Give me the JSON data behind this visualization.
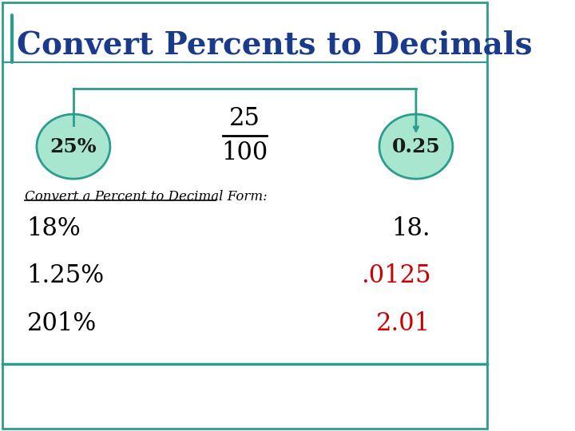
{
  "title": "Convert Percents to Decimals",
  "title_color": "#1a3a8c",
  "title_fontsize": 28,
  "background_color": "#ffffff",
  "border_color": "#2a9d8f",
  "left_bubble_text": "25%",
  "right_bubble_text": "0.25",
  "bubble_fill": "#a8e6cf",
  "bubble_border": "#2a9d8f",
  "fraction_numerator": "25",
  "fraction_denominator": "100",
  "subtitle": "Convert a Percent to Decimal Form:",
  "subtitle_color": "#000000",
  "rows": [
    {
      "left": "18%",
      "right": "18.",
      "right_color": "#000000"
    },
    {
      "left": "1.25%",
      "right": ".0125",
      "right_color": "#cc0000"
    },
    {
      "left": "201%",
      "right": "2.01",
      "right_color": "#cc0000"
    }
  ],
  "row_fontsize": 22,
  "arrow_color": "#2a9d8f",
  "line_color": "#2a9d8f"
}
